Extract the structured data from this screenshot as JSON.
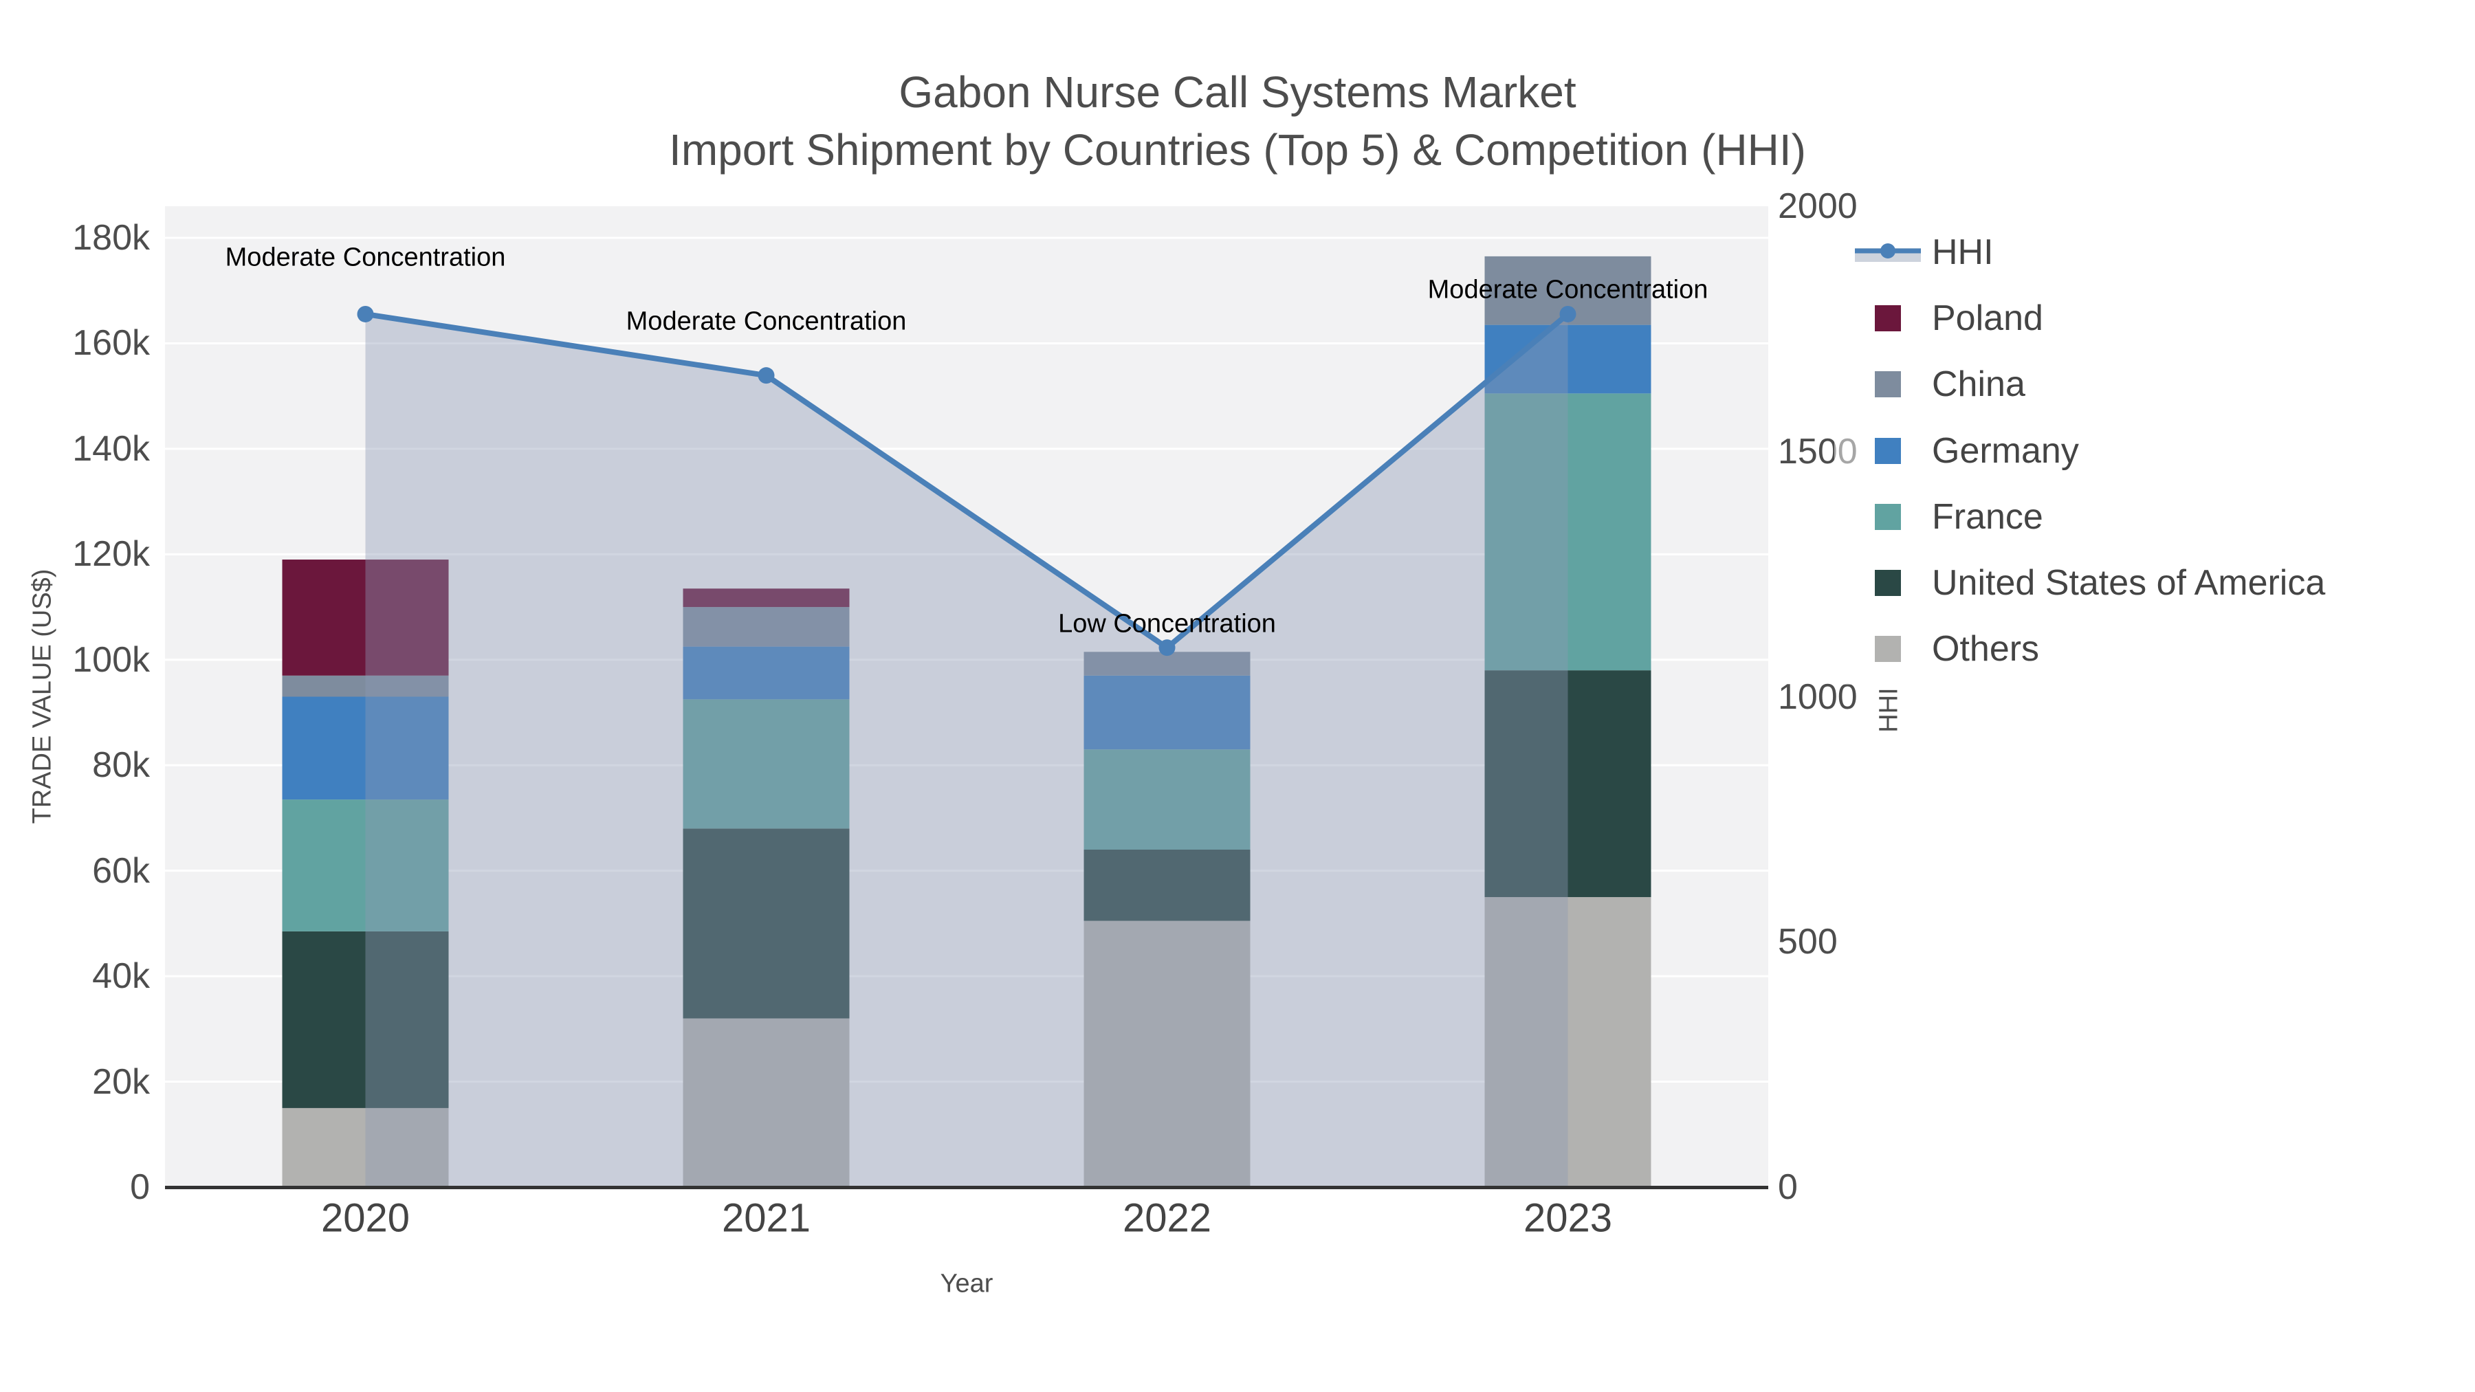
{
  "title": {
    "line1": "Gabon Nurse Call Systems Market",
    "line2": "Import Shipment by Countries (Top 5) & Competition (HHI)"
  },
  "axes": {
    "x": {
      "title": "Year",
      "ticks": [
        "2020",
        "2021",
        "2022",
        "2023"
      ]
    },
    "y_left": {
      "title": "TRADE VALUE (US$)",
      "ticks": [
        "0",
        "20k",
        "40k",
        "60k",
        "80k",
        "100k",
        "120k",
        "140k",
        "160k",
        "180k"
      ]
    },
    "y_right": {
      "title": "HHI",
      "ticks": [
        "0",
        "500",
        "1000",
        "1500",
        "2000"
      ]
    }
  },
  "legend": {
    "items": [
      {
        "label": "HHI",
        "type": "line",
        "color": "#4A80B8"
      },
      {
        "label": "Poland",
        "type": "square",
        "color": "#6B173C"
      },
      {
        "label": "China",
        "type": "square",
        "color": "#7E8C9E"
      },
      {
        "label": "Germany",
        "type": "square",
        "color": "#4080C0"
      },
      {
        "label": "France",
        "type": "square",
        "color": "#61A3A1"
      },
      {
        "label": "United States of America",
        "type": "square",
        "color": "#2A4845"
      },
      {
        "label": "Others",
        "type": "square",
        "color": "#B2B2B0"
      }
    ]
  },
  "annotations": [
    {
      "text": "Moderate Concentration",
      "year": "2020"
    },
    {
      "text": "Moderate Concentration",
      "year": "2021"
    },
    {
      "text": "Low Concentration",
      "year": "2022"
    },
    {
      "text": "Moderate Concentration",
      "year": "2023"
    }
  ],
  "chart_data": {
    "type": "bar+line",
    "title": "Gabon Nurse Call Systems Market — Import Shipment by Countries (Top 5) & Competition (HHI)",
    "xlabel": "Year",
    "ylabel_left": "TRADE VALUE (US$)",
    "ylabel_right": "HHI",
    "categories": [
      "2020",
      "2021",
      "2022",
      "2023"
    ],
    "stack_order_bottom_to_top": [
      "Others",
      "United States of America",
      "France",
      "Germany",
      "China",
      "Poland"
    ],
    "series": [
      {
        "name": "Others",
        "color": "#B2B2B0",
        "values": [
          15000,
          32000,
          50500,
          55000
        ]
      },
      {
        "name": "United States of America",
        "color": "#2A4845",
        "values": [
          33500,
          36000,
          13500,
          43000
        ]
      },
      {
        "name": "France",
        "color": "#61A3A1",
        "values": [
          25000,
          24500,
          19000,
          52500
        ]
      },
      {
        "name": "Germany",
        "color": "#4080C0",
        "values": [
          19500,
          10000,
          14000,
          13000
        ]
      },
      {
        "name": "China",
        "color": "#7E8C9E",
        "values": [
          4000,
          7500,
          4500,
          13000
        ]
      },
      {
        "name": "Poland",
        "color": "#6B173C",
        "values": [
          22000,
          3500,
          0,
          0
        ]
      }
    ],
    "line_series": {
      "name": "HHI",
      "color": "#4A80B8",
      "fill_color": "rgba(140,153,180,0.40)",
      "values": [
        1780,
        1655,
        1100,
        1780
      ]
    },
    "axis_ranges": {
      "y_left": [
        0,
        186000
      ],
      "y_right": [
        0,
        2000
      ]
    },
    "grid": "horizontal-white",
    "legend_position": "right"
  }
}
